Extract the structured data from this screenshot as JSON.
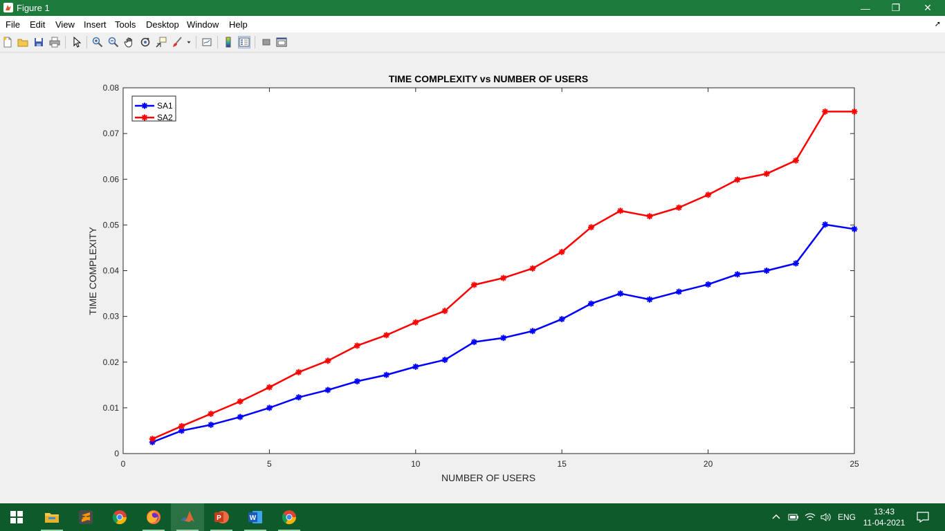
{
  "window": {
    "title": "Figure 1"
  },
  "menu": [
    "File",
    "Edit",
    "View",
    "Insert",
    "Tools",
    "Desktop",
    "Window",
    "Help"
  ],
  "toolbar": {
    "icons": [
      "new-figure-icon",
      "open-file-icon",
      "save-icon",
      "print-icon",
      "pointer-icon",
      "zoom-in-icon",
      "zoom-out-icon",
      "pan-hand-icon",
      "rotate-3d-icon",
      "data-cursor-icon",
      "brush-icon",
      "link-plot-icon",
      "colorbar-icon",
      "legend-icon",
      "hide-plot-tools-icon",
      "show-plot-tools-icon"
    ]
  },
  "chart_data": {
    "type": "line",
    "title": "TIME COMPLEXITY vs NUMBER OF USERS",
    "xlabel": "NUMBER OF USERS",
    "ylabel": "TIME COMPLEXITY",
    "xlim": [
      0,
      25
    ],
    "ylim": [
      0,
      0.08
    ],
    "xticks": [
      "0",
      "5",
      "10",
      "15",
      "20",
      "25"
    ],
    "yticks": [
      "0",
      "0.01",
      "0.02",
      "0.03",
      "0.04",
      "0.05",
      "0.06",
      "0.07",
      "0.08"
    ],
    "grid": false,
    "legend_position": "top-left",
    "x": [
      1,
      2,
      3,
      4,
      5,
      6,
      7,
      8,
      9,
      10,
      11,
      12,
      13,
      14,
      15,
      16,
      17,
      18,
      19,
      20,
      21,
      22,
      23,
      24,
      25
    ],
    "series": [
      {
        "name": "SA1",
        "color": "#0000ff",
        "marker": "asterisk",
        "values": [
          0.0025,
          0.005,
          0.0063,
          0.008,
          0.01,
          0.0123,
          0.0139,
          0.0158,
          0.0172,
          0.019,
          0.0205,
          0.0244,
          0.0253,
          0.0268,
          0.0294,
          0.0328,
          0.035,
          0.0337,
          0.0354,
          0.037,
          0.0392,
          0.04,
          0.0416,
          0.0501,
          0.0491
        ]
      },
      {
        "name": "SA2",
        "color": "#ff0000",
        "marker": "asterisk",
        "values": [
          0.0032,
          0.006,
          0.0087,
          0.0114,
          0.0145,
          0.0178,
          0.0203,
          0.0236,
          0.0259,
          0.0287,
          0.0312,
          0.0369,
          0.0384,
          0.0405,
          0.0441,
          0.0495,
          0.0531,
          0.0519,
          0.0538,
          0.0566,
          0.0599,
          0.0612,
          0.0641,
          0.0748,
          0.0748
        ]
      }
    ]
  },
  "taskbar": {
    "apps": [
      {
        "name": "file-explorer-icon",
        "running": true,
        "active": false
      },
      {
        "name": "sublime-text-icon",
        "running": false,
        "active": false
      },
      {
        "name": "chrome-icon",
        "running": false,
        "active": false
      },
      {
        "name": "firefox-icon",
        "running": true,
        "active": false
      },
      {
        "name": "matlab-icon",
        "running": true,
        "active": true
      },
      {
        "name": "powerpoint-icon",
        "running": true,
        "active": false
      },
      {
        "name": "word-icon",
        "running": true,
        "active": false
      },
      {
        "name": "chrome-icon",
        "running": true,
        "active": false
      }
    ],
    "language": "ENG",
    "time": "13:43",
    "date": "11-04-2021"
  }
}
